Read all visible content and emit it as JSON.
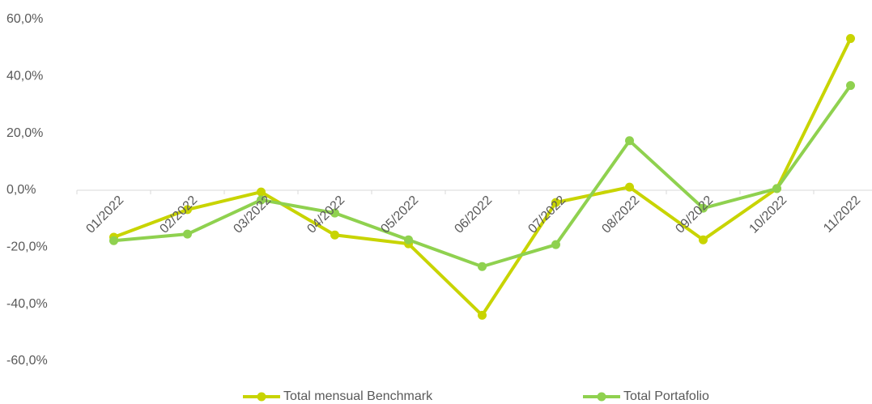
{
  "chart_data": {
    "type": "line",
    "categories": [
      "01/2022",
      "02/2022",
      "03/2022",
      "04/2022",
      "05/2022",
      "06/2022",
      "07/2022",
      "08/2022",
      "09/2022",
      "10/2022",
      "11/2022"
    ],
    "series": [
      {
        "name": "Total mensual Benchmark",
        "color": "#c8d400",
        "values": [
          -16.5,
          -6.8,
          -0.6,
          -15.7,
          -18.8,
          -43.9,
          -4.3,
          1.1,
          -17.4,
          0.6,
          53.3
        ]
      },
      {
        "name": "Total Portafolio",
        "color": "#8fd14f",
        "values": [
          -17.7,
          -15.4,
          -3.4,
          -8.0,
          -17.4,
          -26.8,
          -19.1,
          17.4,
          -6.3,
          0.6,
          36.8
        ]
      }
    ],
    "ylim": [
      -70,
      60
    ],
    "yticks": [
      {
        "value": 60,
        "label": "60,0%"
      },
      {
        "value": 40,
        "label": "40,0%"
      },
      {
        "value": 20,
        "label": "20,0%"
      },
      {
        "value": 0,
        "label": "0,0%"
      },
      {
        "value": -20,
        "label": "-20,0%"
      },
      {
        "value": -40,
        "label": "-40,0%"
      },
      {
        "value": -60,
        "label": "-60,0%"
      }
    ],
    "grid": false,
    "legend": "bottom"
  }
}
